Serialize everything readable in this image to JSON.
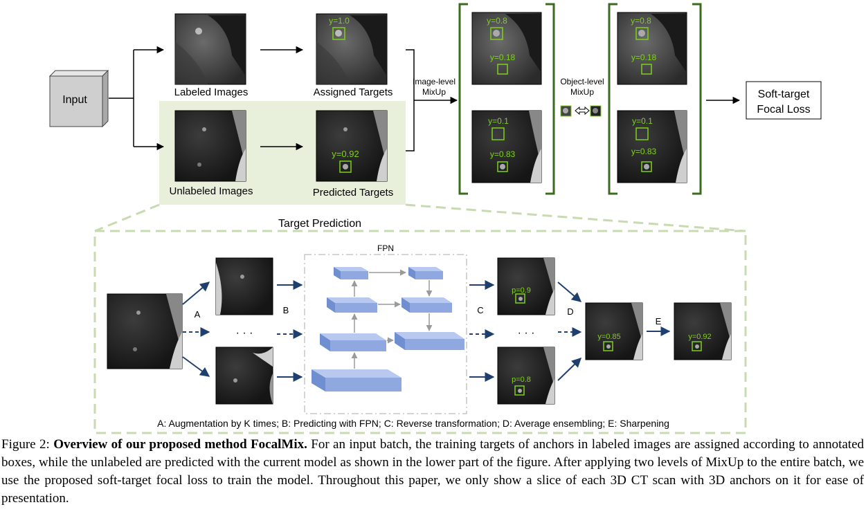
{
  "top": {
    "input_label": "Input",
    "labeled_images": "Labeled Images",
    "assigned_targets": "Assigned Targets",
    "unlabeled_images": "Unlabeled Images",
    "predicted_targets": "Predicted Targets",
    "image_level_1": "Image-level",
    "image_level_2": "MixUp",
    "object_level_1": "Object-level",
    "object_level_2": "MixUp",
    "loss_1": "Soft-target",
    "loss_2": "Focal Loss",
    "assigned_y": "y=1.0",
    "predicted_y": "y=0.92",
    "mix1_top_a": "y=0.8",
    "mix1_top_b": "y=0.18",
    "mix1_bot_a": "y=0.1",
    "mix1_bot_b": "y=0.83",
    "mix2_top_a": "y=0.8",
    "mix2_top_b": "y=0.18",
    "mix2_bot_a": "y=0.1",
    "mix2_bot_b": "y=0.83"
  },
  "bottom": {
    "title": "Target Prediction",
    "fpn": "FPN",
    "label_a": "A",
    "label_b": "B",
    "label_c": "C",
    "label_d": "D",
    "label_e": "E",
    "dots": "· · ·",
    "p_top": "p=0.9",
    "p_bot": "p=0.8",
    "y_avg": "y=0.85",
    "y_sharp": "y=0.92",
    "legend": "A: Augmentation by K times; B: Predicting with FPN; C: Reverse transformation; D: Average ensembling; E: Sharpening"
  },
  "caption": {
    "prefix": "Figure 2: ",
    "bold": "Overview of our proposed method FocalMix.",
    "text": " For an input batch, the training targets of anchors in labeled images are assigned according to annotated boxes, while the unlabeled are predicted with the current model as shown in the lower part of the figure. After applying two levels of MixUp to the entire batch, we use the proposed soft-target focal loss to train the model. Throughout this paper, we only show a slice of each 3D CT scan with 3D anchors on it for ease of presentation."
  },
  "colors": {
    "green_box": "#7fd11b",
    "bracket": "#3a6b1e",
    "panel_bg": "#e8f0dc",
    "arrow_blue": "#1f3f6e",
    "fpn_block": "#8fa9e0"
  }
}
